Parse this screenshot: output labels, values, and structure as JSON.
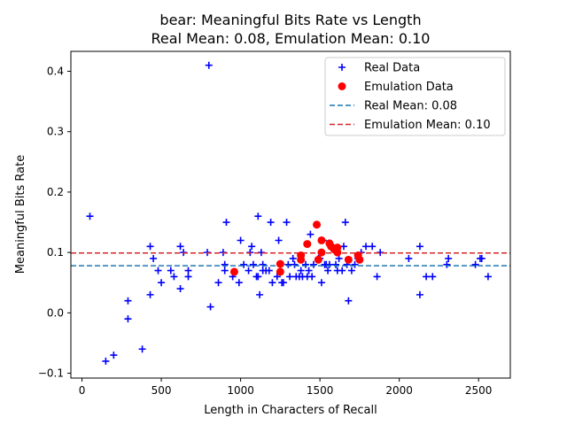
{
  "chart_data": {
    "type": "scatter",
    "title": "bear: Meaningful Bits Rate vs Length",
    "subtitle": "Real Mean: 0.08, Emulation Mean: 0.10",
    "xlabel": "Length in Characters of Recall",
    "ylabel": "Meaningful Bits Rate",
    "xlim": [
      -70,
      2700
    ],
    "ylim": [
      -0.108,
      0.433
    ],
    "xticks": [
      0,
      500,
      1000,
      1500,
      2000,
      2500
    ],
    "yticks": [
      -0.1,
      0.0,
      0.1,
      0.2,
      0.3,
      0.4
    ],
    "xtick_labels": [
      "0",
      "500",
      "1000",
      "1500",
      "2000",
      "2500"
    ],
    "ytick_labels": [
      "−0.1",
      "0.0",
      "0.1",
      "0.2",
      "0.3",
      "0.4"
    ],
    "grid": false,
    "legend_position": "upper right",
    "series": [
      {
        "name": "Real Data",
        "marker": "plus",
        "color": "#0000ff",
        "points": [
          [
            50,
            0.16
          ],
          [
            150,
            -0.08
          ],
          [
            200,
            -0.07
          ],
          [
            290,
            0.02
          ],
          [
            290,
            -0.01
          ],
          [
            380,
            -0.06
          ],
          [
            430,
            0.11
          ],
          [
            430,
            0.03
          ],
          [
            450,
            0.09
          ],
          [
            480,
            0.07
          ],
          [
            500,
            0.05
          ],
          [
            560,
            0.07
          ],
          [
            580,
            0.06
          ],
          [
            620,
            0.11
          ],
          [
            620,
            0.04
          ],
          [
            640,
            0.1
          ],
          [
            670,
            0.07
          ],
          [
            670,
            0.06
          ],
          [
            790,
            0.1
          ],
          [
            800,
            0.41
          ],
          [
            810,
            0.01
          ],
          [
            860,
            0.05
          ],
          [
            890,
            0.1
          ],
          [
            900,
            0.08
          ],
          [
            900,
            0.07
          ],
          [
            910,
            0.15
          ],
          [
            950,
            0.06
          ],
          [
            990,
            0.05
          ],
          [
            1000,
            0.12
          ],
          [
            1020,
            0.08
          ],
          [
            1050,
            0.07
          ],
          [
            1060,
            0.1
          ],
          [
            1070,
            0.11
          ],
          [
            1080,
            0.08
          ],
          [
            1100,
            0.06
          ],
          [
            1110,
            0.06
          ],
          [
            1110,
            0.16
          ],
          [
            1120,
            0.03
          ],
          [
            1130,
            0.1
          ],
          [
            1140,
            0.08
          ],
          [
            1140,
            0.07
          ],
          [
            1160,
            0.07
          ],
          [
            1180,
            0.07
          ],
          [
            1190,
            0.15
          ],
          [
            1200,
            0.05
          ],
          [
            1230,
            0.06
          ],
          [
            1240,
            0.12
          ],
          [
            1250,
            0.08
          ],
          [
            1260,
            0.05
          ],
          [
            1270,
            0.05
          ],
          [
            1290,
            0.15
          ],
          [
            1300,
            0.08
          ],
          [
            1310,
            0.06
          ],
          [
            1330,
            0.09
          ],
          [
            1340,
            0.08
          ],
          [
            1350,
            0.06
          ],
          [
            1370,
            0.06
          ],
          [
            1380,
            0.07
          ],
          [
            1390,
            0.06
          ],
          [
            1410,
            0.08
          ],
          [
            1420,
            0.06
          ],
          [
            1430,
            0.07
          ],
          [
            1440,
            0.13
          ],
          [
            1450,
            0.06
          ],
          [
            1460,
            0.08
          ],
          [
            1490,
            0.09
          ],
          [
            1500,
            0.09
          ],
          [
            1510,
            0.05
          ],
          [
            1520,
            0.12
          ],
          [
            1530,
            0.08
          ],
          [
            1540,
            0.08
          ],
          [
            1550,
            0.07
          ],
          [
            1560,
            0.08
          ],
          [
            1580,
            0.11
          ],
          [
            1600,
            0.08
          ],
          [
            1610,
            0.07
          ],
          [
            1620,
            0.09
          ],
          [
            1640,
            0.07
          ],
          [
            1650,
            0.11
          ],
          [
            1660,
            0.15
          ],
          [
            1670,
            0.08
          ],
          [
            1680,
            0.02
          ],
          [
            1700,
            0.07
          ],
          [
            1720,
            0.08
          ],
          [
            1740,
            0.09
          ],
          [
            1760,
            0.1
          ],
          [
            1790,
            0.11
          ],
          [
            1830,
            0.11
          ],
          [
            1860,
            0.06
          ],
          [
            1880,
            0.1
          ],
          [
            2060,
            0.09
          ],
          [
            2130,
            0.11
          ],
          [
            2130,
            0.03
          ],
          [
            2170,
            0.06
          ],
          [
            2210,
            0.06
          ],
          [
            2300,
            0.08
          ],
          [
            2310,
            0.09
          ],
          [
            2480,
            0.08
          ],
          [
            2510,
            0.09
          ],
          [
            2520,
            0.09
          ],
          [
            2560,
            0.06
          ]
        ]
      },
      {
        "name": "Emulation Data",
        "marker": "circle",
        "color": "#ff0000",
        "points": [
          [
            960,
            0.068
          ],
          [
            1250,
            0.081
          ],
          [
            1250,
            0.068
          ],
          [
            1380,
            0.088
          ],
          [
            1380,
            0.095
          ],
          [
            1420,
            0.114
          ],
          [
            1480,
            0.146
          ],
          [
            1490,
            0.088
          ],
          [
            1510,
            0.1
          ],
          [
            1510,
            0.12
          ],
          [
            1560,
            0.115
          ],
          [
            1570,
            0.11
          ],
          [
            1590,
            0.105
          ],
          [
            1610,
            0.108
          ],
          [
            1610,
            0.1
          ],
          [
            1680,
            0.088
          ],
          [
            1740,
            0.095
          ],
          [
            1750,
            0.088
          ]
        ]
      }
    ],
    "hlines": [
      {
        "name": "Real Mean: 0.08",
        "y": 0.078,
        "color": "#1f77b4",
        "style": "dashed"
      },
      {
        "name": "Emulation Mean: 0.10",
        "y": 0.099,
        "color": "#d62728",
        "style": "dashed"
      }
    ]
  }
}
